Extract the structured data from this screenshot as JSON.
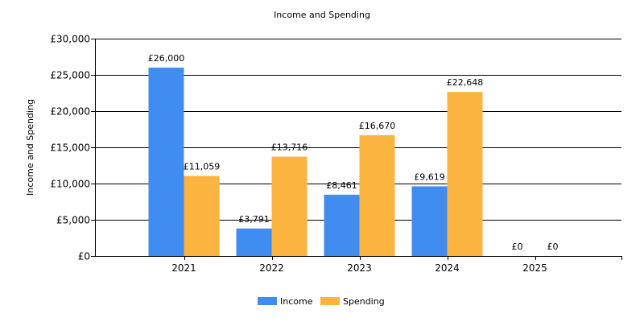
{
  "chart_data": {
    "type": "bar",
    "title": "Income and Spending",
    "xlabel": "",
    "ylabel": "Income and Spending",
    "categories": [
      "2021",
      "2022",
      "2023",
      "2024",
      "2025"
    ],
    "series": [
      {
        "name": "Income",
        "color": "#418CF0",
        "values": [
          26000,
          3791,
          8461,
          9619,
          0
        ],
        "labels": [
          "£26,000",
          "£3,791",
          "£8,461",
          "£9,619",
          "£0"
        ]
      },
      {
        "name": "Spending",
        "color": "#FCB441",
        "values": [
          11059,
          13716,
          16670,
          22648,
          0
        ],
        "labels": [
          "£11,059",
          "£13,716",
          "£16,670",
          "£22,648",
          "£0"
        ]
      }
    ],
    "ylim": [
      0,
      30000
    ],
    "yticks": [
      0,
      5000,
      10000,
      15000,
      20000,
      25000,
      30000
    ],
    "ytick_labels": [
      "£0",
      "£5,000",
      "£10,000",
      "£15,000",
      "£20,000",
      "£25,000",
      "£30,000"
    ],
    "grid": true,
    "legend_position": "bottom-center"
  }
}
